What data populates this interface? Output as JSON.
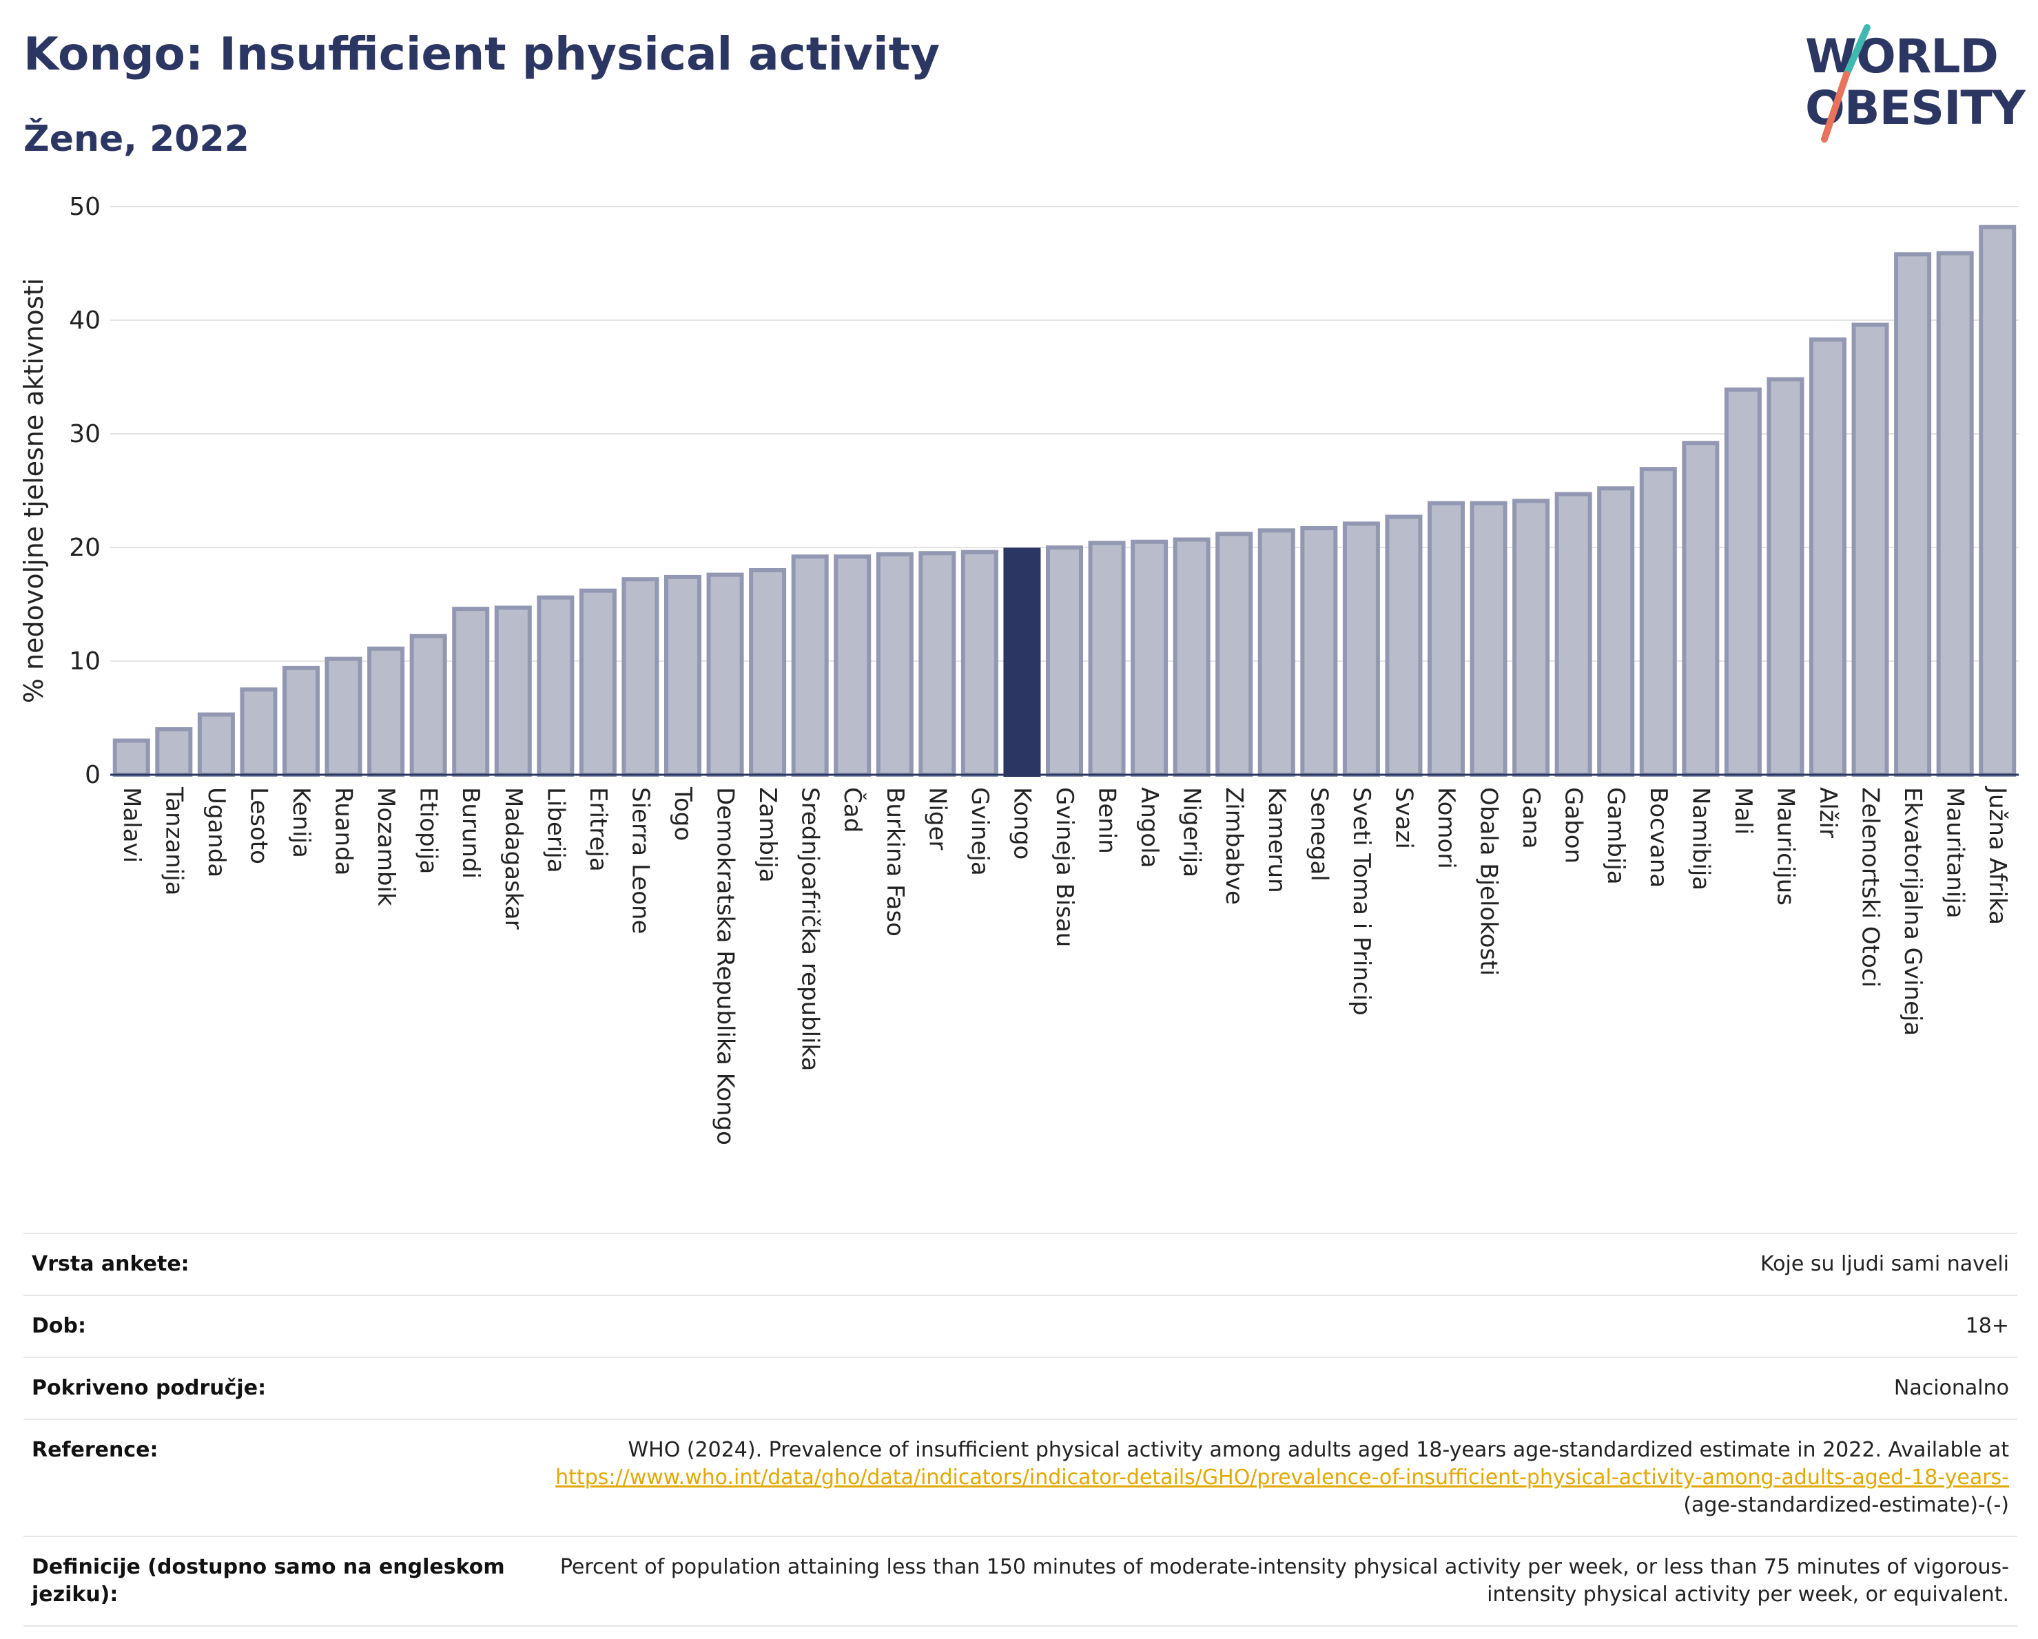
{
  "header": {
    "title": "Kongo: Insufficient physical activity",
    "subtitle": "Žene, 2022"
  },
  "logo": {
    "line1": "WORLD",
    "line2": "OBESITY",
    "slash_colors": [
      "#3fb8af",
      "#e8735a"
    ]
  },
  "colors": {
    "bar": "#b8bccb",
    "bar_stroke": "#9298b1",
    "highlight": "#2c3662"
  },
  "chart_data": {
    "type": "bar",
    "title": "Kongo: Insufficient physical activity",
    "subtitle": "Žene, 2022",
    "xlabel": "",
    "ylabel": "% nedovoljne tjelesne aktivnosti",
    "ylim": [
      0,
      50
    ],
    "yticks": [
      0,
      10,
      20,
      30,
      40,
      50
    ],
    "grid": true,
    "highlight": "Kongo",
    "categories": [
      "Malavi",
      "Tanzanija",
      "Uganda",
      "Lesoto",
      "Kenija",
      "Ruanda",
      "Mozambik",
      "Etiopija",
      "Burundi",
      "Madagaskar",
      "Liberija",
      "Eritreja",
      "Sierra Leone",
      "Togo",
      "Demokratska Republika Kongo",
      "Zambija",
      "Srednjoafrička republika",
      "Čad",
      "Burkina Faso",
      "Niger",
      "Gvineja",
      "Kongo",
      "Gvineja Bisau",
      "Benin",
      "Angola",
      "Nigerija",
      "Zimbabve",
      "Kamerun",
      "Senegal",
      "Sveti Toma i Princip",
      "Svazi",
      "Komori",
      "Obala Bjelokosti",
      "Gana",
      "Gabon",
      "Gambija",
      "Bocvana",
      "Namibija",
      "Mali",
      "Mauricijus",
      "Alžir",
      "Zelenortski Otoci",
      "Ekvatorijalna Gvineja",
      "Mauritanija",
      "Južna Afrika"
    ],
    "values": [
      3.0,
      4.0,
      5.3,
      7.5,
      9.4,
      10.2,
      11.1,
      12.2,
      14.6,
      14.7,
      15.6,
      16.2,
      17.2,
      17.4,
      17.6,
      18.0,
      19.2,
      19.2,
      19.4,
      19.5,
      19.6,
      19.8,
      20.0,
      20.4,
      20.5,
      20.7,
      21.2,
      21.5,
      21.7,
      22.1,
      22.7,
      23.9,
      23.9,
      24.1,
      24.7,
      25.2,
      26.9,
      29.2,
      33.9,
      34.8,
      38.3,
      39.6,
      45.8,
      45.9,
      48.2
    ]
  },
  "info_table": {
    "rows": [
      {
        "label": "Vrsta ankete:",
        "value": "Koje su ljudi sami naveli"
      },
      {
        "label": "Dob:",
        "value": "18+"
      },
      {
        "label": "Pokriveno područje:",
        "value": "Nacionalno"
      },
      {
        "label": "Reference:",
        "value": "WHO (2024). Prevalence of insufficient physical activity among adults aged 18-years age-standardized estimate in 2022. Available at",
        "link": "https://www.who.int/data/gho/data/indicators/indicator-details/GHO/prevalence-of-insufficient-physical-activity-among-adults-aged-18-years-",
        "suffix": "(age-standardized-estimate)-(-)"
      },
      {
        "label": "Definicije (dostupno samo na engleskom jeziku):",
        "value": "Percent of population attaining less than 150 minutes of moderate-intensity physical activity per week, or less than 75 minutes of vigorous-intensity physical activity per week, or equivalent."
      }
    ]
  }
}
